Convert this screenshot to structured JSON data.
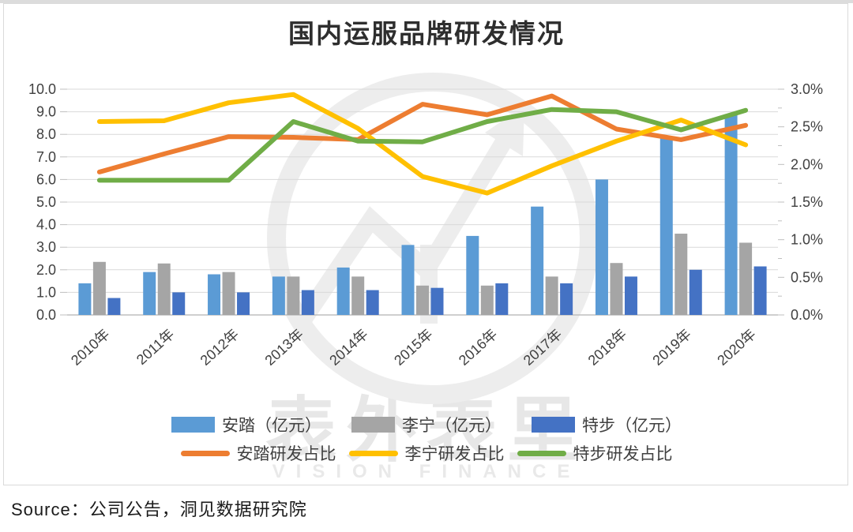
{
  "title": "国内运服品牌研发情况",
  "source_line": "Source：公司公告，洞见数据研究院",
  "watermark": {
    "text": "表外表里",
    "subtext": "VISION FINANCE"
  },
  "colors": {
    "anta_bar": "#5B9BD5",
    "lining_bar": "#A5A5A5",
    "xtep_bar": "#4472C4",
    "anta_line": "#ED7D31",
    "lining_line": "#FFC000",
    "xtep_line": "#70AD47",
    "grid": "#D9D9D9",
    "axis_line": "#BFBFBF",
    "tick_mark": "#BFBFBF",
    "axis_text": "#404040",
    "watermark_gray": "#EDEDED"
  },
  "chart_data": {
    "type": "bar+line combo",
    "title": "国内运服品牌研发情况",
    "categories": [
      "2010年",
      "2011年",
      "2012年",
      "2013年",
      "2014年",
      "2015年",
      "2016年",
      "2017年",
      "2018年",
      "2019年",
      "2020年"
    ],
    "left_axis": {
      "min": 0,
      "max": 10,
      "step": 1,
      "tick_labels": [
        "10.0",
        "9.0",
        "8.0",
        "7.0",
        "6.0",
        "5.0",
        "4.0",
        "3.0",
        "2.0",
        "1.0",
        "0.0"
      ]
    },
    "right_axis": {
      "min": 0,
      "max": 3,
      "step": 0.5,
      "minor_step": 0.25,
      "tick_labels": [
        "3.0%",
        "2.5%",
        "2.0%",
        "1.5%",
        "1.0%",
        "0.5%",
        "0.0%"
      ]
    },
    "grid": "horizontal",
    "legend_position": "bottom",
    "bar_series": [
      {
        "key": "anta",
        "name": "安踏（亿元）",
        "color": "#5B9BD5",
        "values": [
          1.4,
          1.9,
          1.8,
          1.7,
          2.1,
          3.1,
          3.5,
          4.8,
          6.0,
          7.85,
          8.9
        ]
      },
      {
        "key": "lining",
        "name": "李宁（亿元）",
        "color": "#A5A5A5",
        "values": [
          2.35,
          2.28,
          1.9,
          1.7,
          1.7,
          1.3,
          1.3,
          1.7,
          2.3,
          3.6,
          3.2
        ]
      },
      {
        "key": "xtep",
        "name": "特步（亿元）",
        "color": "#4472C4",
        "values": [
          0.75,
          1.0,
          1.0,
          1.1,
          1.1,
          1.2,
          1.4,
          1.4,
          1.7,
          2.0,
          2.15
        ]
      }
    ],
    "line_series": [
      {
        "key": "anta",
        "name": "安踏研发占比",
        "color": "#ED7D31",
        "unit": "%",
        "values": [
          1.9,
          2.14,
          2.37,
          2.36,
          2.33,
          2.8,
          2.66,
          2.91,
          2.47,
          2.33,
          2.52
        ]
      },
      {
        "key": "lining",
        "name": "李宁研发占比",
        "color": "#FFC000",
        "unit": "%",
        "values": [
          2.57,
          2.58,
          2.82,
          2.93,
          2.48,
          1.84,
          1.62,
          1.98,
          2.31,
          2.59,
          2.26
        ]
      },
      {
        "key": "xtep",
        "name": "特步研发占比",
        "color": "#70AD47",
        "unit": "%",
        "values": [
          1.79,
          1.79,
          1.79,
          2.57,
          2.31,
          2.3,
          2.57,
          2.73,
          2.7,
          2.46,
          2.72
        ]
      }
    ]
  }
}
